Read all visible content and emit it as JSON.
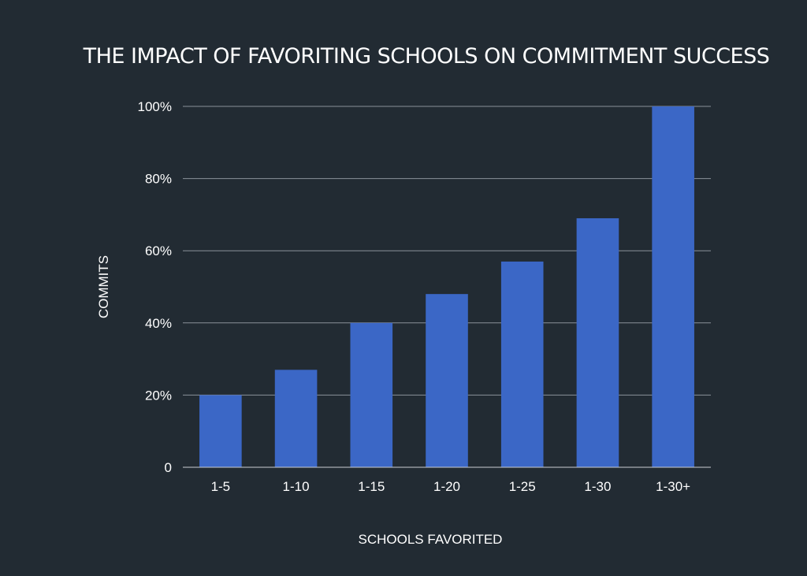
{
  "chart_data": {
    "type": "bar",
    "title": "THE IMPACT OF FAVORITING SCHOOLS ON COMMITMENT SUCCESS",
    "xlabel": "SCHOOLS FAVORITED",
    "ylabel": "COMMITS",
    "categories": [
      "1-5",
      "1-10",
      "1-15",
      "1-20",
      "1-25",
      "1-30",
      "1-30+"
    ],
    "values": [
      20,
      27,
      40,
      48,
      57,
      69,
      100
    ],
    "ylim": [
      0,
      100
    ],
    "yticks": [
      {
        "value": 0,
        "label": "0"
      },
      {
        "value": 20,
        "label": "20%"
      },
      {
        "value": 40,
        "label": "40%"
      },
      {
        "value": 60,
        "label": "60%"
      },
      {
        "value": 80,
        "label": "80%"
      },
      {
        "value": 100,
        "label": "100%"
      }
    ],
    "grid": true,
    "legend": "none",
    "colors": {
      "background": "#222b33",
      "bar": "#3b67c6",
      "text": "#ffffff",
      "grid": "#8a929a"
    }
  }
}
